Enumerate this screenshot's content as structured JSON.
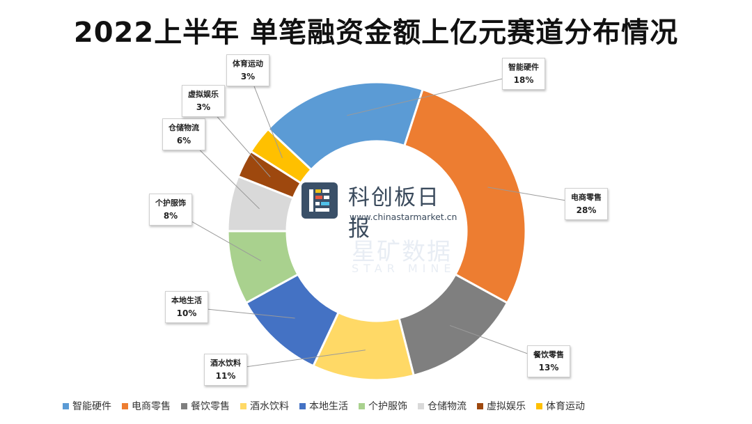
{
  "chart_data": {
    "type": "pie",
    "donut": true,
    "title": "2022上半年 单笔融资金额上亿元赛道分布情况",
    "legend_position": "bottom",
    "slices": [
      {
        "name": "智能硬件",
        "value": 18,
        "label": "18%",
        "color": "#5b9bd5"
      },
      {
        "name": "电商零售",
        "value": 28,
        "label": "28%",
        "color": "#ed7d31"
      },
      {
        "name": "餐饮零售",
        "value": 13,
        "label": "13%",
        "color": "#7f7f7f"
      },
      {
        "name": "酒水饮料",
        "value": 11,
        "label": "11%",
        "color": "#ffd966"
      },
      {
        "name": "本地生活",
        "value": 10,
        "label": "10%",
        "color": "#4472c4"
      },
      {
        "name": "个护服饰",
        "value": 8,
        "label": "8%",
        "color": "#a9d18e"
      },
      {
        "name": "仓储物流",
        "value": 6,
        "label": "6%",
        "color": "#d9d9d9"
      },
      {
        "name": "虚拟娱乐",
        "value": 3,
        "label": "3%",
        "color": "#9e480e"
      },
      {
        "name": "体育运动",
        "value": 3,
        "label": "3%",
        "color": "#ffc000"
      }
    ]
  },
  "branding": {
    "logo_name": "科创板日报",
    "logo_url": "www.chinastarmarket.cn",
    "watermark_name": "星矿数据",
    "watermark_en": "STAR MINE"
  }
}
